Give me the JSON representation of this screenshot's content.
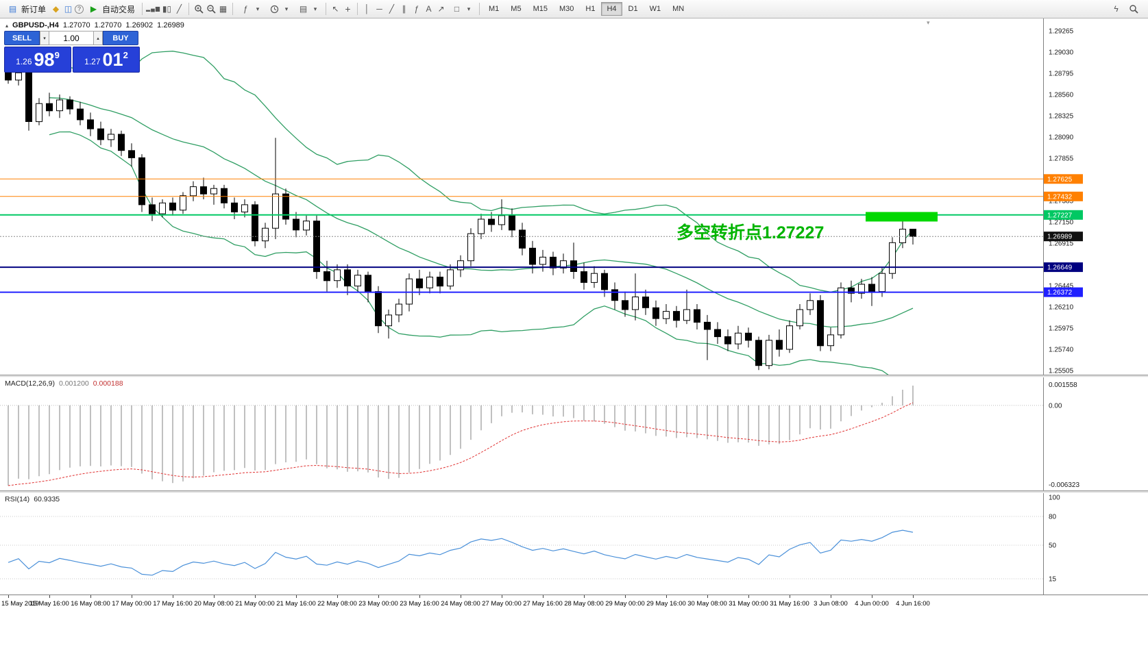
{
  "toolbar": {
    "new_order_label": "新订单",
    "autotrade_label": "自动交易",
    "timeframes": [
      {
        "label": "M1"
      },
      {
        "label": "M5"
      },
      {
        "label": "M15"
      },
      {
        "label": "M30"
      },
      {
        "label": "H1"
      },
      {
        "label": "H4",
        "active": true
      },
      {
        "label": "D1"
      },
      {
        "label": "W1"
      },
      {
        "label": "MN"
      }
    ]
  },
  "icons": {
    "new_order": "▤",
    "diamond": "◆",
    "new_chart": "◫",
    "help": "?",
    "play": "▶",
    "bar_chart": "▂▄▆",
    "candles": "▮▯",
    "line_chart": "╱",
    "grid": "▦",
    "indicators": "ƒ",
    "templates": "▤",
    "cursor": "↖",
    "crosshair": "+",
    "vline": "│",
    "hline": "─",
    "trendline": "╱",
    "channel": "∥",
    "fibonacci": "ƒ",
    "text_tool": "A",
    "arrows": "↗",
    "shapes": "□",
    "dropdown": "▾",
    "lightning": "ϟ",
    "spin_up": "▴",
    "spin_down": "▾",
    "oneclick_toggle": "▴",
    "shift_marker": "▾"
  },
  "symbol_info": {
    "symbol": "GBPUSD-,H4",
    "open": "1.27070",
    "high": "1.27070",
    "low": "1.26902",
    "close": "1.26989"
  },
  "one_click": {
    "sell_label": "SELL",
    "buy_label": "BUY",
    "volume": "1.00",
    "bid_small": "1.26",
    "bid_big": "98",
    "bid_sup": "9",
    "ask_small": "1.27",
    "ask_big": "01",
    "ask_sup": "2"
  },
  "annotation": {
    "text": "多空转折点1.27227",
    "color": "#00b400",
    "time_index": 65,
    "price": 1.2718
  },
  "chart_data": {
    "type": "candlestick",
    "symbol": "GBPUSD",
    "timeframe": "H4",
    "style": {
      "bull_fill": "#ffffff",
      "bear_fill": "#000000",
      "outline": "#000000",
      "background": "#ffffff"
    },
    "price_axis": {
      "max": 1.29265,
      "min": 1.25505,
      "grid_labels": [
        "1.29265",
        "1.29030",
        "1.28795",
        "1.28560",
        "1.28325",
        "1.28090",
        "1.27855",
        "1.27385",
        "1.27150",
        "1.26915",
        "1.26445",
        "1.26210",
        "1.25975",
        "1.25740",
        "1.25505"
      ]
    },
    "bollinger": {
      "period": 20,
      "deviation": 2,
      "color": "#2f9e63"
    },
    "levels": [
      {
        "value": 1.27625,
        "label": "1.27625",
        "color": "#ff8000",
        "width": 1
      },
      {
        "value": 1.27432,
        "label": "1.27432",
        "color": "#ff8000",
        "width": 1
      },
      {
        "value": 1.27227,
        "label": "1.27227",
        "color": "#00c863",
        "width": 2
      },
      {
        "value": 1.26649,
        "label": "1.26649",
        "color": "#000080",
        "width": 2
      },
      {
        "value": 1.26372,
        "label": "1.26372",
        "color": "#2020ff",
        "width": 2
      }
    ],
    "bid_line": {
      "value": 1.26989,
      "label": "1.26989",
      "color": "#888888",
      "tag_color": "#111111"
    },
    "rectangle": {
      "from_index": 83.4,
      "to_index": 90.4,
      "price_top": 1.2726,
      "price_bottom": 1.27155,
      "color": "#00d800"
    },
    "candles": [
      [
        1.2882,
        1.2888,
        1.2868,
        1.2872
      ],
      [
        1.2872,
        1.2884,
        1.2866,
        1.288
      ],
      [
        1.288,
        1.2884,
        1.2816,
        1.2826
      ],
      [
        1.2826,
        1.2852,
        1.2822,
        1.2846
      ],
      [
        1.2846,
        1.2858,
        1.2832,
        1.2838
      ],
      [
        1.2838,
        1.2856,
        1.283,
        1.285
      ],
      [
        1.285,
        1.2854,
        1.2834,
        1.284
      ],
      [
        1.284,
        1.2848,
        1.2822,
        1.2828
      ],
      [
        1.2828,
        1.2836,
        1.281,
        1.2818
      ],
      [
        1.2818,
        1.2826,
        1.28,
        1.2806
      ],
      [
        1.2806,
        1.2818,
        1.2798,
        1.2812
      ],
      [
        1.2812,
        1.2816,
        1.2788,
        1.2794
      ],
      [
        1.2794,
        1.2802,
        1.2776,
        1.2786
      ],
      [
        1.2786,
        1.279,
        1.2726,
        1.2734
      ],
      [
        1.2734,
        1.2742,
        1.2716,
        1.2724
      ],
      [
        1.2724,
        1.274,
        1.272,
        1.2736
      ],
      [
        1.2736,
        1.2742,
        1.2722,
        1.2728
      ],
      [
        1.2728,
        1.2748,
        1.2724,
        1.2744
      ],
      [
        1.2744,
        1.276,
        1.2738,
        1.2754
      ],
      [
        1.2754,
        1.2764,
        1.274,
        1.2746
      ],
      [
        1.2746,
        1.2756,
        1.2734,
        1.2752
      ],
      [
        1.2752,
        1.2756,
        1.273,
        1.2736
      ],
      [
        1.2736,
        1.2742,
        1.2718,
        1.2726
      ],
      [
        1.2726,
        1.274,
        1.272,
        1.2734
      ],
      [
        1.2734,
        1.2738,
        1.2688,
        1.2694
      ],
      [
        1.2694,
        1.2714,
        1.2686,
        1.2708
      ],
      [
        1.2708,
        1.2808,
        1.2696,
        1.2746
      ],
      [
        1.2746,
        1.2752,
        1.2712,
        1.2718
      ],
      [
        1.2718,
        1.2726,
        1.2698,
        1.2706
      ],
      [
        1.2706,
        1.2722,
        1.27,
        1.2716
      ],
      [
        1.2716,
        1.2722,
        1.2652,
        1.266
      ],
      [
        1.266,
        1.2672,
        1.2638,
        1.265
      ],
      [
        1.265,
        1.2668,
        1.2642,
        1.2662
      ],
      [
        1.2662,
        1.2668,
        1.2634,
        1.2644
      ],
      [
        1.2644,
        1.2662,
        1.2638,
        1.2656
      ],
      [
        1.2656,
        1.266,
        1.2626,
        1.2638
      ],
      [
        1.2638,
        1.2644,
        1.2592,
        1.26
      ],
      [
        1.26,
        1.2618,
        1.2586,
        1.2612
      ],
      [
        1.2612,
        1.263,
        1.2604,
        1.2624
      ],
      [
        1.2624,
        1.2658,
        1.2616,
        1.2652
      ],
      [
        1.2652,
        1.2662,
        1.2634,
        1.2642
      ],
      [
        1.2642,
        1.266,
        1.2636,
        1.2654
      ],
      [
        1.2654,
        1.266,
        1.2636,
        1.2644
      ],
      [
        1.2644,
        1.2668,
        1.264,
        1.2662
      ],
      [
        1.2662,
        1.2678,
        1.2654,
        1.2672
      ],
      [
        1.2672,
        1.2708,
        1.2666,
        1.2702
      ],
      [
        1.2702,
        1.2724,
        1.2696,
        1.2718
      ],
      [
        1.2718,
        1.2726,
        1.2704,
        1.2712
      ],
      [
        1.2712,
        1.274,
        1.2706,
        1.2722
      ],
      [
        1.2722,
        1.273,
        1.2698,
        1.2706
      ],
      [
        1.2706,
        1.2714,
        1.2678,
        1.2686
      ],
      [
        1.2686,
        1.2694,
        1.2658,
        1.2668
      ],
      [
        1.2668,
        1.2684,
        1.266,
        1.2676
      ],
      [
        1.2676,
        1.2682,
        1.2656,
        1.2664
      ],
      [
        1.2664,
        1.268,
        1.2658,
        1.2672
      ],
      [
        1.2672,
        1.2692,
        1.2652,
        1.266
      ],
      [
        1.266,
        1.267,
        1.264,
        1.2648
      ],
      [
        1.2648,
        1.2666,
        1.2642,
        1.2658
      ],
      [
        1.2658,
        1.2662,
        1.2632,
        1.264
      ],
      [
        1.264,
        1.2648,
        1.2618,
        1.2628
      ],
      [
        1.2628,
        1.2638,
        1.261,
        1.2618
      ],
      [
        1.2618,
        1.2658,
        1.2606,
        1.2632
      ],
      [
        1.2632,
        1.264,
        1.2612,
        1.262
      ],
      [
        1.262,
        1.2628,
        1.26,
        1.2608
      ],
      [
        1.2608,
        1.2624,
        1.2602,
        1.2616
      ],
      [
        1.2616,
        1.2622,
        1.2598,
        1.2606
      ],
      [
        1.2606,
        1.264,
        1.2602,
        1.2618
      ],
      [
        1.2618,
        1.2624,
        1.2596,
        1.2604
      ],
      [
        1.2604,
        1.2612,
        1.2562,
        1.2596
      ],
      [
        1.2596,
        1.2604,
        1.258,
        1.2588
      ],
      [
        1.2588,
        1.2596,
        1.2572,
        1.258
      ],
      [
        1.258,
        1.26,
        1.2574,
        1.2592
      ],
      [
        1.2592,
        1.2598,
        1.2576,
        1.2584
      ],
      [
        1.2584,
        1.2588,
        1.2551,
        1.2556
      ],
      [
        1.2556,
        1.259,
        1.2552,
        1.2584
      ],
      [
        1.2584,
        1.2596,
        1.2566,
        1.2574
      ],
      [
        1.2574,
        1.2606,
        1.257,
        1.26
      ],
      [
        1.26,
        1.2624,
        1.2596,
        1.2618
      ],
      [
        1.2618,
        1.2636,
        1.2612,
        1.2628
      ],
      [
        1.2628,
        1.2634,
        1.2572,
        1.2578
      ],
      [
        1.2578,
        1.2598,
        1.2572,
        1.259
      ],
      [
        1.259,
        1.2648,
        1.2586,
        1.2642
      ],
      [
        1.2642,
        1.265,
        1.2626,
        1.2636
      ],
      [
        1.2636,
        1.2652,
        1.263,
        1.2646
      ],
      [
        1.2646,
        1.2654,
        1.2622,
        1.2638
      ],
      [
        1.2638,
        1.2664,
        1.2632,
        1.2658
      ],
      [
        1.2658,
        1.2698,
        1.2652,
        1.2692
      ],
      [
        1.2692,
        1.2718,
        1.2686,
        1.2707
      ],
      [
        1.2707,
        1.2707,
        1.269,
        1.2699
      ]
    ],
    "time_axis": {
      "step": 4,
      "labels": [
        "15 May 2019",
        "15 May 16:00",
        "16 May 08:00",
        "17 May 00:00",
        "17 May 16:00",
        "20 May 08:00",
        "21 May 00:00",
        "21 May 16:00",
        "22 May 08:00",
        "23 May 00:00",
        "23 May 16:00",
        "24 May 08:00",
        "27 May 00:00",
        "27 May 16:00",
        "28 May 08:00",
        "29 May 00:00",
        "29 May 16:00",
        "30 May 08:00",
        "31 May 00:00",
        "31 May 16:00",
        "3 Jun 08:00",
        "4 Jun 00:00",
        "4 Jun 16:00"
      ]
    },
    "macd": {
      "label": "MACD(12,26,9)",
      "value": "0.001200",
      "signal_value": "0.000188",
      "fast": 12,
      "slow": 26,
      "signal": 9,
      "warmup_offset": 0.0055,
      "hist_color": "#808080",
      "signal_color": "#e03030",
      "axis": {
        "max": 0.001558,
        "min": -0.006323,
        "max_label": "0.001558",
        "zero_label": "0.00",
        "min_label": "-0.006323"
      }
    },
    "rsi": {
      "label": "RSI(14)",
      "value": "60.9335",
      "period": 14,
      "color": "#4a90d9",
      "levels": [
        80,
        50,
        15
      ],
      "axis_labels": [
        "100",
        "80",
        "50",
        "15"
      ],
      "seed": {
        "gain": 0.00032,
        "loss": 0.00068
      }
    }
  }
}
